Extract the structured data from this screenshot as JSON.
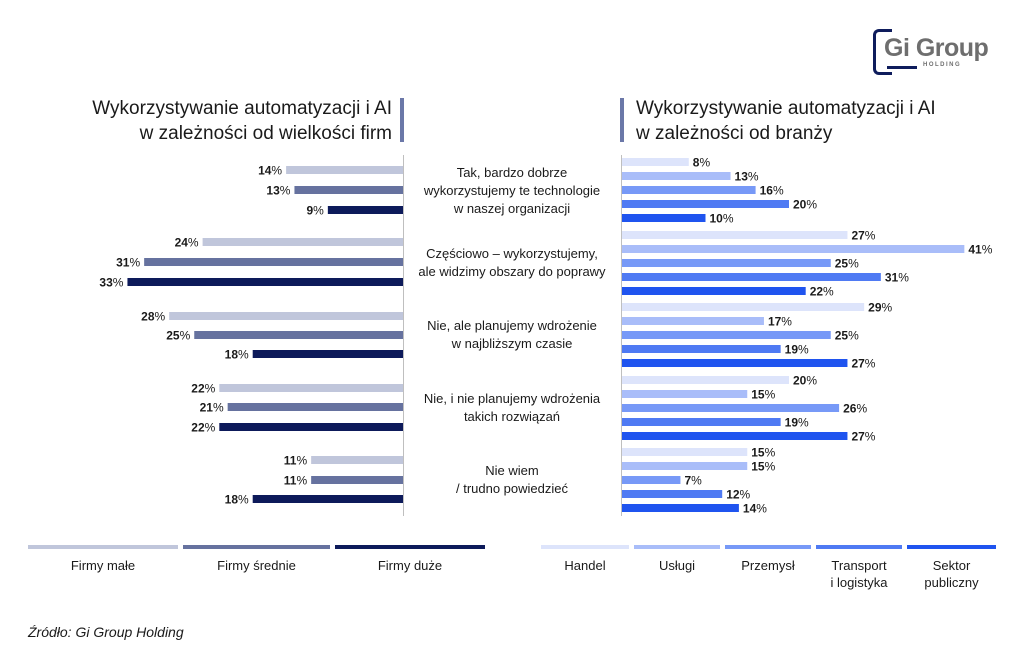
{
  "logo": {
    "main": "Gi Group",
    "sub": "HOLDING"
  },
  "source": "Źródło: Gi Group Holding",
  "categories": [
    [
      "Tak, bardzo dobrze",
      "wykorzystujemy te technologie",
      "w naszej organizacji"
    ],
    [
      "Częściowo – wykorzystujemy,",
      "ale widzimy obszary do poprawy"
    ],
    [
      "Nie, ale planujemy wdrożenie",
      "w najbliższym czasie"
    ],
    [
      "Nie, i nie planujemy wdrożenia",
      "takich rozwiązań"
    ],
    [
      "Nie wiem",
      "/ trudno powiedzieć"
    ]
  ],
  "chart_data": [
    {
      "type": "bar",
      "orientation": "horizontal",
      "direction": "leftward",
      "title": [
        "Wykorzystywanie automatyzacji i AI",
        "w zależności od wielkości firm"
      ],
      "categories": [
        "Tak, bardzo dobrze wykorzystujemy te technologie w naszej organizacji",
        "Częściowo – wykorzystujemy, ale widzimy obszary do poprawy",
        "Nie, ale planujemy wdrożenie w najbliższym czasie",
        "Nie, i nie planujemy wdrożenia takich rozwiązań",
        "Nie wiem / trudno powiedzieć"
      ],
      "series": [
        {
          "name": "Firmy małe",
          "color": "#c0c6db",
          "values": [
            14,
            24,
            28,
            22,
            11
          ]
        },
        {
          "name": "Firmy średnie",
          "color": "#66729f",
          "values": [
            13,
            31,
            25,
            21,
            11
          ]
        },
        {
          "name": "Firmy duże",
          "color": "#0d1a5a",
          "values": [
            9,
            33,
            18,
            22,
            18
          ]
        }
      ],
      "value_suffix": "%",
      "legend_position": "bottom"
    },
    {
      "type": "bar",
      "orientation": "horizontal",
      "direction": "rightward",
      "title": [
        "Wykorzystywanie automatyzacji i AI",
        "w zależności od branży"
      ],
      "categories": [
        "Tak, bardzo dobrze wykorzystujemy te technologie w naszej organizacji",
        "Częściowo – wykorzystujemy, ale widzimy obszary do poprawy",
        "Nie, ale planujemy wdrożenie w najbliższym czasie",
        "Nie, i nie planujemy wdrożenia takich rozwiązań",
        "Nie wiem / trudno powiedzieć"
      ],
      "series": [
        {
          "name": "Handel",
          "label_lines": [
            "Handel"
          ],
          "color": "#dde4fb",
          "values": [
            8,
            27,
            29,
            20,
            15
          ]
        },
        {
          "name": "Usługi",
          "label_lines": [
            "Usługi"
          ],
          "color": "#a9bdf9",
          "values": [
            13,
            41,
            17,
            15,
            15
          ]
        },
        {
          "name": "Przemysł",
          "label_lines": [
            "Przemysł"
          ],
          "color": "#7799f7",
          "values": [
            16,
            25,
            25,
            26,
            7
          ]
        },
        {
          "name": "Transport i logistyka",
          "label_lines": [
            "Transport",
            "i logistyka"
          ],
          "color": "#4f7af3",
          "values": [
            20,
            31,
            19,
            19,
            12
          ]
        },
        {
          "name": "Sektor publiczny",
          "label_lines": [
            "Sektor",
            "publiczny"
          ],
          "color": "#1f54ef",
          "values": [
            10,
            22,
            27,
            27,
            14
          ]
        }
      ],
      "value_suffix": "%",
      "legend_position": "bottom"
    }
  ]
}
